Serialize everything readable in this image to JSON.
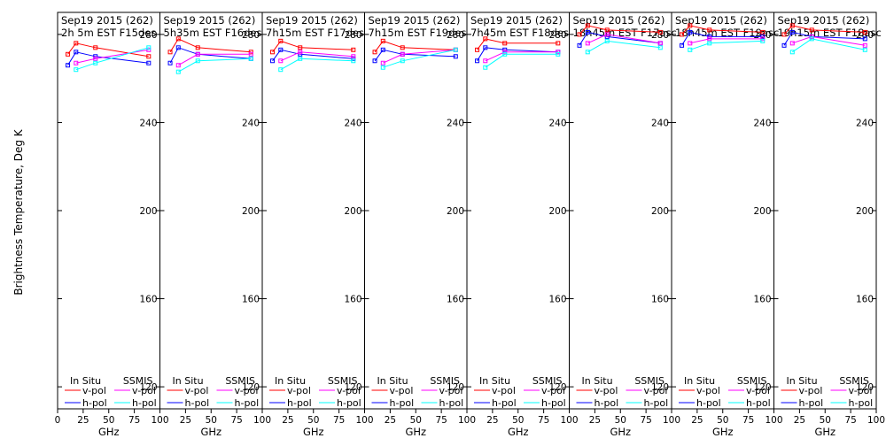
{
  "chart_data": {
    "type": "line",
    "ylabel": "Brightness Temperature, Deg K",
    "xlabel": "GHz",
    "ylim": [
      110,
      290
    ],
    "xlim": [
      0,
      100
    ],
    "y_ticks": [
      120,
      160,
      200,
      240,
      280
    ],
    "x_ticks_first": [
      "0",
      "25",
      "50",
      "75",
      "100"
    ],
    "x_ticks": [
      "25",
      "50",
      "75",
      "100"
    ],
    "legend": {
      "in_situ": "In Situ",
      "ssmis": "SSMIS",
      "vpol": "v-pol",
      "hpol": "h-pol"
    },
    "colors": {
      "in_situ_v": "#ff0000",
      "in_situ_h": "#0000ff",
      "ssmis_v": "#ff00ff",
      "ssmis_h": "#00ffff",
      "frame": "#000000"
    },
    "freqs": [
      10,
      18,
      37,
      89
    ],
    "panels": [
      {
        "date": "Sep19 2015 (262)",
        "time": "2h 5m  EST F15des",
        "in_situ_v": [
          271,
          276,
          274,
          270
        ],
        "in_situ_h": [
          266,
          272,
          270,
          267
        ],
        "ssmis_v": [
          267,
          269,
          273
        ],
        "ssmis_h": [
          264,
          267,
          274
        ]
      },
      {
        "date": "Sep19 2015 (262)",
        "time": "5h35m  EST F16des",
        "in_situ_v": [
          272,
          278,
          274,
          272
        ],
        "in_situ_h": [
          267,
          274,
          271,
          269
        ],
        "ssmis_v": [
          266,
          271,
          271
        ],
        "ssmis_h": [
          263,
          268,
          269
        ]
      },
      {
        "date": "Sep19 2015 (262)",
        "time": "7h15m  EST F17des",
        "in_situ_v": [
          272,
          277,
          274,
          273
        ],
        "in_situ_h": [
          268,
          273,
          271,
          269
        ],
        "ssmis_v": [
          268,
          272,
          270
        ],
        "ssmis_h": [
          264,
          269,
          268
        ]
      },
      {
        "date": "Sep19 2015 (262)",
        "time": "7h15m  EST F19des",
        "in_situ_v": [
          272,
          277,
          274,
          273
        ],
        "in_situ_h": [
          268,
          273,
          271,
          270
        ],
        "ssmis_v": [
          267,
          271,
          273
        ],
        "ssmis_h": [
          265,
          268,
          273
        ]
      },
      {
        "date": "Sep19 2015 (262)",
        "time": "7h45m  EST F18des",
        "in_situ_v": [
          273,
          278,
          276,
          276
        ],
        "in_situ_h": [
          268,
          274,
          273,
          272
        ],
        "ssmis_v": [
          268,
          272,
          272
        ],
        "ssmis_h": [
          265,
          271,
          271
        ]
      },
      {
        "date": "Sep19 2015 (262)",
        "time": "18h45m  EST F17asc",
        "in_situ_v": [
          280,
          284,
          282,
          281
        ],
        "in_situ_h": [
          275,
          281,
          279,
          276
        ],
        "ssmis_v": [
          276,
          280,
          276
        ],
        "ssmis_h": [
          272,
          277,
          274
        ]
      },
      {
        "date": "Sep19 2015 (262)",
        "time": "18h45m  EST F19asc",
        "in_situ_v": [
          280,
          284,
          282,
          281
        ],
        "in_situ_h": [
          275,
          281,
          279,
          279
        ],
        "ssmis_v": [
          276,
          278,
          278
        ],
        "ssmis_h": [
          273,
          276,
          277
        ]
      },
      {
        "date": "Sep19 2015 (262)",
        "time": "19h15m  EST F18asc",
        "in_situ_v": [
          280,
          284,
          282,
          281
        ],
        "in_situ_h": [
          275,
          281,
          279,
          278
        ],
        "ssmis_v": [
          276,
          279,
          275
        ],
        "ssmis_h": [
          272,
          278,
          273
        ]
      }
    ]
  }
}
